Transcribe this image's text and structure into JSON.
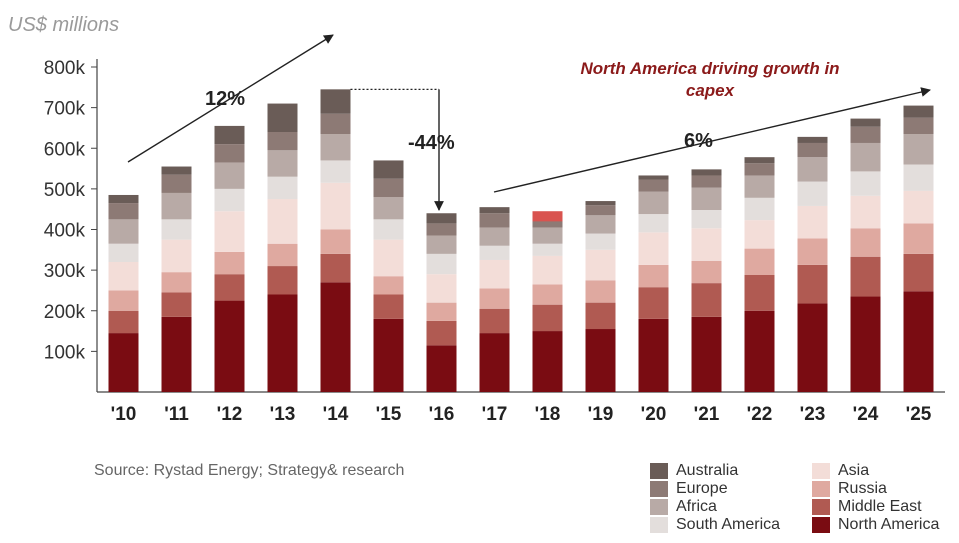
{
  "chart_data": {
    "type": "bar",
    "stacked": true,
    "unit_label": "US$ millions",
    "categories": [
      "'10",
      "'11",
      "'12",
      "'13",
      "'14",
      "'15",
      "'16",
      "'17",
      "'18",
      "'19",
      "'20",
      "'21",
      "'22",
      "'23",
      "'24",
      "'25"
    ],
    "y_ticks": [
      "100k",
      "200k",
      "300k",
      "400k",
      "500k",
      "600k",
      "700k",
      "800k"
    ],
    "ylim": [
      0,
      800
    ],
    "series": [
      {
        "name": "North America",
        "color": "#7a0c12",
        "values": [
          145,
          185,
          225,
          240,
          270,
          180,
          115,
          145,
          150,
          155,
          180,
          185,
          200,
          218,
          235,
          248
        ]
      },
      {
        "name": "Middle East",
        "color": "#b05a52",
        "values": [
          55,
          60,
          65,
          70,
          70,
          60,
          60,
          60,
          65,
          65,
          78,
          83,
          88,
          95,
          98,
          92
        ]
      },
      {
        "name": "Russia",
        "color": "#dfa9a0",
        "values": [
          50,
          50,
          55,
          55,
          60,
          45,
          45,
          50,
          50,
          55,
          55,
          55,
          65,
          65,
          70,
          75
        ]
      },
      {
        "name": "Asia",
        "color": "#f3ddd8",
        "values": [
          70,
          80,
          100,
          110,
          115,
          90,
          70,
          70,
          70,
          75,
          80,
          80,
          70,
          80,
          80,
          80
        ]
      },
      {
        "name": "South America",
        "color": "#e3dedc",
        "values": [
          45,
          50,
          55,
          55,
          55,
          50,
          50,
          35,
          30,
          40,
          45,
          45,
          55,
          60,
          60,
          65
        ]
      },
      {
        "name": "Africa",
        "color": "#b8aaa6",
        "values": [
          60,
          65,
          65,
          65,
          65,
          55,
          45,
          45,
          40,
          45,
          55,
          55,
          55,
          60,
          70,
          75
        ]
      },
      {
        "name": "Europe",
        "color": "#8d7a75",
        "values": [
          40,
          45,
          45,
          45,
          50,
          45,
          30,
          35,
          25,
          25,
          30,
          30,
          30,
          35,
          40,
          40
        ]
      },
      {
        "name": "Australia",
        "color": "#6a5c57",
        "values": [
          20,
          20,
          45,
          70,
          60,
          45,
          25,
          15,
          10,
          10,
          10,
          15,
          15,
          15,
          20,
          30
        ]
      }
    ],
    "highlight": {
      "category": "'18",
      "color": "#d9534f",
      "bottom": 420,
      "top": 445
    },
    "annotations": [
      {
        "text": "12%"
      },
      {
        "text": "-44%"
      },
      {
        "text": "6%"
      },
      {
        "text": "North America driving growth in capex"
      }
    ],
    "source": "Source: Rystad Energy; Strategy& research",
    "legend": {
      "left": [
        "Australia",
        "Europe",
        "Africa",
        "South America"
      ],
      "right": [
        "Asia",
        "Russia",
        "Middle East",
        "North America"
      ]
    }
  }
}
